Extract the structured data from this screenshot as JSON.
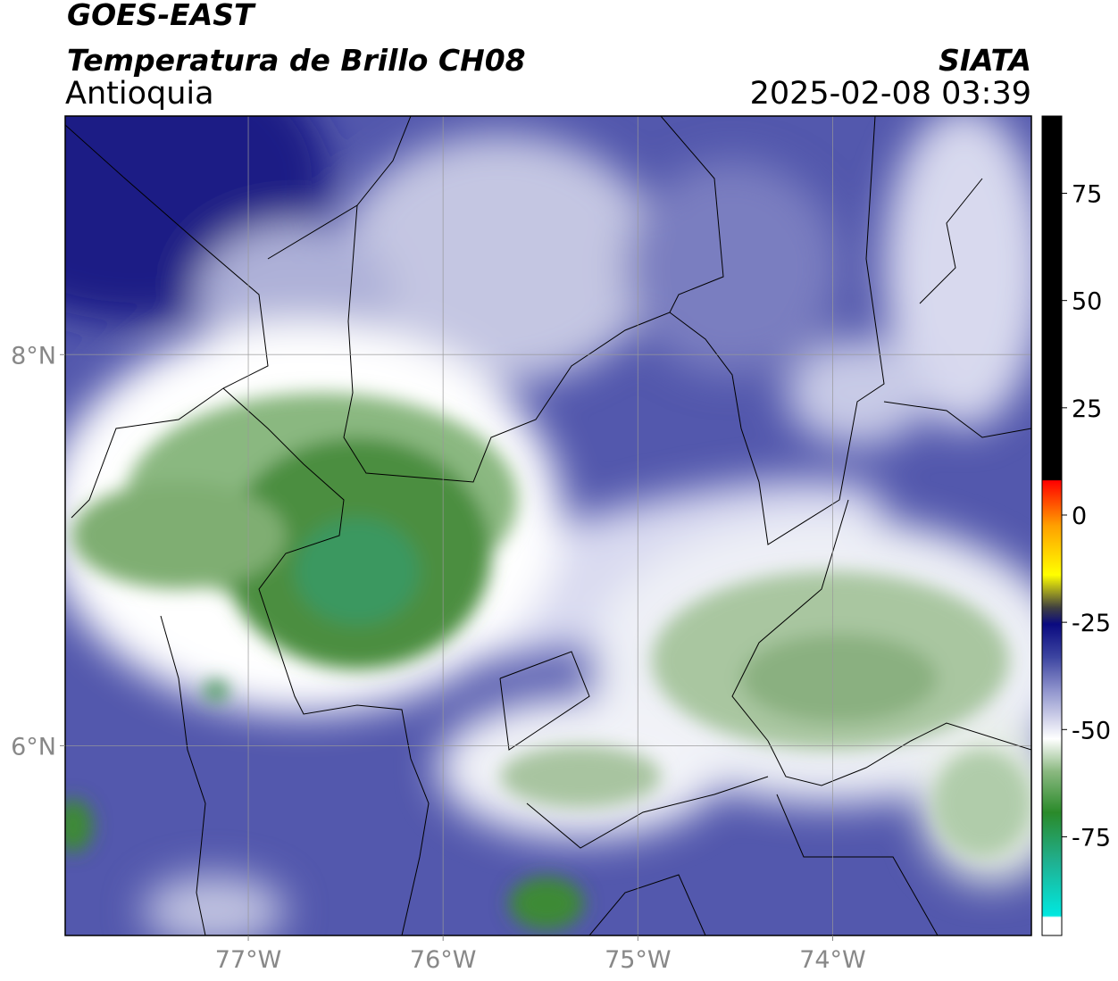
{
  "header": {
    "title": "GOES-EAST",
    "subtitle": "Temperatura de Brillo CH08",
    "region": "Antioquia",
    "source": "SIATA",
    "datetime": "2025-02-08 03:39"
  },
  "map": {
    "lonlim": [
      -77.94,
      -72.98
    ],
    "latlim": [
      5.03,
      9.22
    ],
    "lonticks": [
      {
        "value": -77,
        "label": "77°W"
      },
      {
        "value": -76,
        "label": "76°W"
      },
      {
        "value": -75,
        "label": "75°W"
      },
      {
        "value": -74,
        "label": "74°W"
      }
    ],
    "latticks": [
      {
        "value": 8,
        "label": "8°N"
      },
      {
        "value": 6,
        "label": "6°N"
      }
    ],
    "grid": true
  },
  "colorbar": {
    "lim": [
      -98,
      93
    ],
    "ticks": [
      75,
      50,
      25,
      0,
      -25,
      -50,
      -75
    ]
  }
}
